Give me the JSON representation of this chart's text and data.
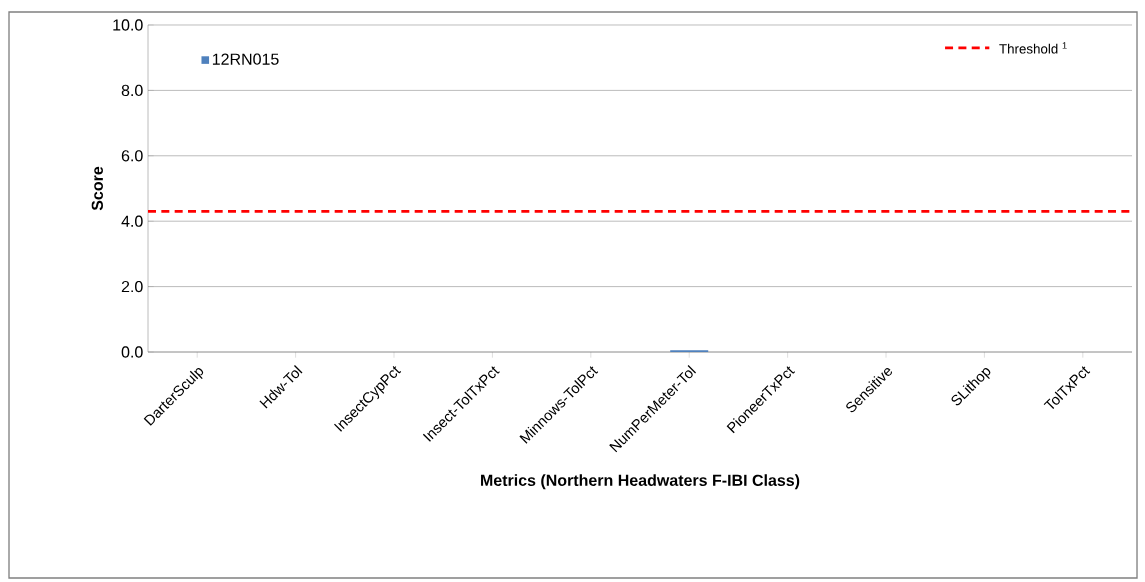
{
  "chart_data": {
    "type": "bar",
    "xlabel": "Metrics (Northern Headwaters F-IBI Class)",
    "ylabel": "Score",
    "categories": [
      "DarterSculp",
      "Hdw-Tol",
      "InsectCypPct",
      "Insect-TolTxPct",
      "Minnows-TolPct",
      "NumPerMeter-Tol",
      "PioneerTxPct",
      "Sensitive",
      "SLithop",
      "TolTxPct"
    ],
    "series": [
      {
        "name": "12RN015",
        "color": "#4f81bd",
        "values": [
          0,
          0,
          0,
          0,
          0,
          0.05,
          0,
          0,
          0,
          0
        ]
      }
    ],
    "ylim": [
      0,
      10
    ],
    "yticks": [
      {
        "value": 0,
        "label": "0.0"
      },
      {
        "value": 2,
        "label": "2.0"
      },
      {
        "value": 4,
        "label": "4.0"
      },
      {
        "value": 6,
        "label": "6.0"
      },
      {
        "value": 8,
        "label": "8.0"
      },
      {
        "value": 10,
        "label": "10.0"
      }
    ],
    "grid": "y",
    "legend": "top left",
    "ref_lines": [
      {
        "axis": "y",
        "value": 4.3,
        "label": "Threshold $^{1}$",
        "color": "#ff0000",
        "line_style": "dashed"
      }
    ]
  }
}
